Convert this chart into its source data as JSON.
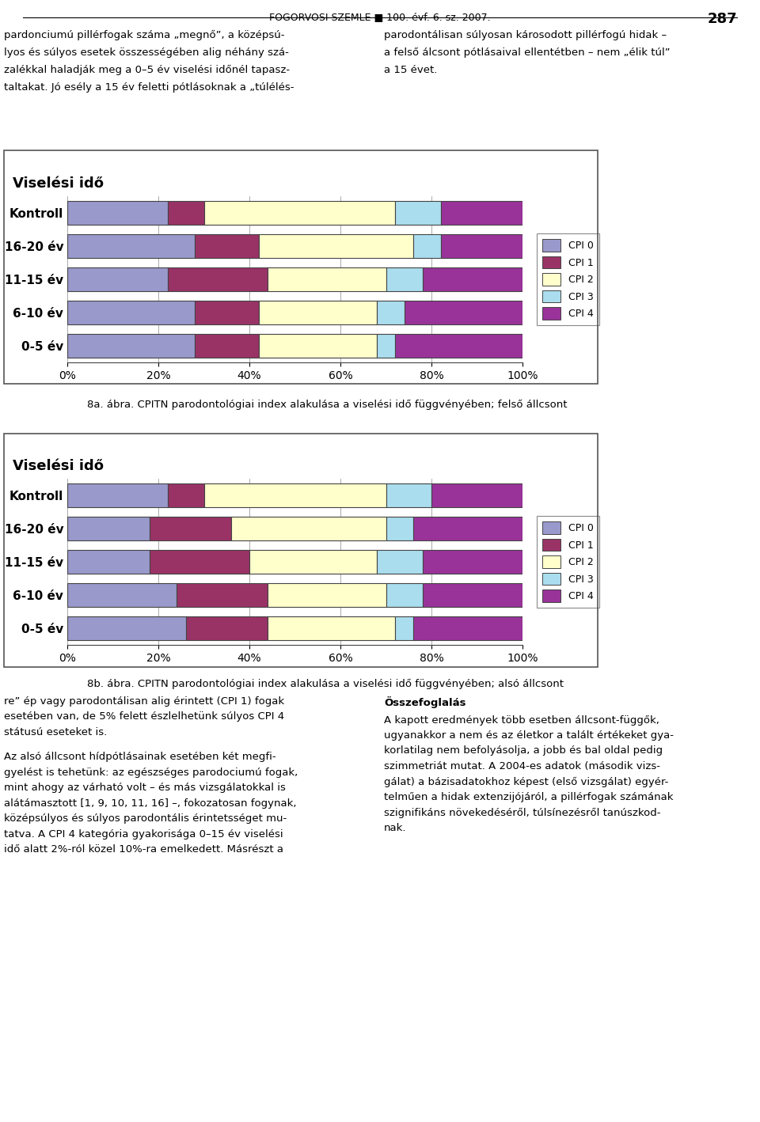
{
  "chart1": {
    "title": "Viselési idő",
    "caption": "8a. ábra. CPITN parodontológiai index alakulása a viselési idő függvényében; felső állcsont",
    "categories": [
      "Kontroll",
      "16-20 év",
      "11-15 év",
      "6-10 év",
      "0-5 év"
    ],
    "cpi0": [
      22,
      28,
      22,
      28,
      28
    ],
    "cpi1": [
      8,
      14,
      22,
      14,
      14
    ],
    "cpi2": [
      42,
      34,
      26,
      26,
      26
    ],
    "cpi3": [
      10,
      6,
      8,
      6,
      4
    ],
    "cpi4": [
      18,
      18,
      22,
      26,
      28
    ]
  },
  "chart2": {
    "title": "Viselési idő",
    "caption": "8b. ábra. CPITN parodontológiai index alakulása a viselési idő függvényében; alsó állcsont",
    "categories": [
      "Kontroll",
      "16-20 év",
      "11-15 év",
      "6-10 év",
      "0-5 év"
    ],
    "cpi0": [
      22,
      18,
      18,
      24,
      26
    ],
    "cpi1": [
      8,
      18,
      22,
      20,
      18
    ],
    "cpi2": [
      40,
      34,
      28,
      26,
      28
    ],
    "cpi3": [
      10,
      6,
      10,
      8,
      4
    ],
    "cpi4": [
      20,
      24,
      22,
      22,
      24
    ]
  },
  "colors": {
    "cpi0": "#9999cc",
    "cpi1": "#993366",
    "cpi2": "#ffffcc",
    "cpi3": "#aaddee",
    "cpi4": "#993399"
  },
  "legend_labels": [
    "CPI 0",
    "CPI 1",
    "CPI 2",
    "CPI 3",
    "CPI 4"
  ],
  "page_header": "FOGORVOSI SZEMLE ■ 100. évf. 6. sz. 2007.",
  "page_number": "287",
  "text_col1_lines": [
    "pardonciumú pillérfogak száma „megnő”, a középsú-",
    "lyos és súlyos esetek összességében alig néhány szá-",
    "zalékkal haladják meg a 0–5 év viselési időnél tapasz-",
    "taltakat. Jó esély a 15 év feletti pótlásoknak a „túlélés-"
  ],
  "text_col2_lines": [
    "parodontálisan súlyosan károsodott pillérfogú hidak –",
    "a felső álcsont pótlásaival ellentétben – nem „élik túl”",
    "a 15 évet."
  ],
  "bottom_col1_lines": [
    "re” ép vagy parodontálisan alig érintett (CPI 1) fogak",
    "esetében van, de 5% felett észlelhetünk súlyos CPI 4",
    "státusú eseteket is."
  ],
  "bottom_col1_para2": [
    "Az alsó állcsont hídpótlásainak esetében két megfi-",
    "gyelést is tehetünk: az egészséges parodociumú fogak,",
    "mint ahogy az várható volt – és más vizsgálatokkal is",
    "alátámasztott [1, 9, 10, 11, 16] –, fokozatosan fogynak,",
    "középsúlyos és súlyos parodontális érintetsséget mu-",
    "tatva. A CPI 4 kategória gyakorisága 0–15 év viselési",
    "idő alatt 2%-ról közel 10%-ra emelkedett. Másrészt a"
  ],
  "bottom_col2_title": "Összefoglalás",
  "bottom_col2_lines": [
    "A kapott eredmények több esetben állcsont-függők,",
    "ugyanakkor a nem és az életkor a talált értékeket gya-",
    "korlatilag nem befolyásolja, a jobb és bal oldal pedig",
    "szimmetriát mutat. A 2004-es adatok (második vizs-",
    "gálat) a bázisadatokhoz képest (első vizsgálat) egyér-",
    "telműen a hidak extenzijójáról, a pillérfogak számának",
    "szignifikáns növekedéséről, túlsínezésről tanúszkod-",
    "nak."
  ]
}
